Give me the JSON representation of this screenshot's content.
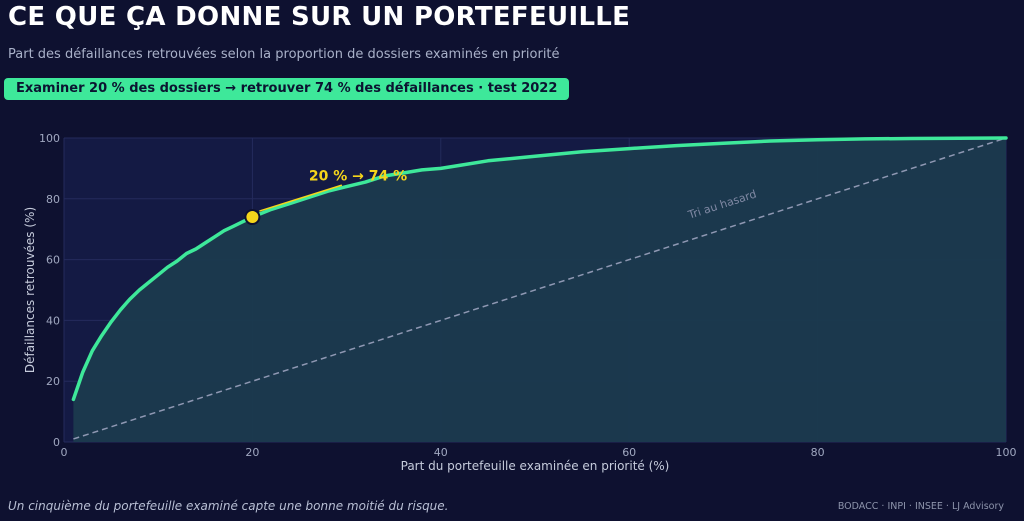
{
  "header": {
    "title": "CE QUE ÇA DONNE SUR UN PORTEFEUILLE",
    "subtitle": "Part des défaillances retrouvées selon la proportion de dossiers examinés en priorité",
    "highlight": "Examiner 20 % des dossiers → retrouver 74 % des défaillances  ·  test 2022"
  },
  "footer": {
    "caption": "Un cinquième du portefeuille examiné capte une bonne moitié du risque.",
    "sources": "BODACC · INPI · INSEE · LJ Advisory"
  },
  "colors": {
    "background": "#0e1130",
    "plot_area": "#141a44",
    "curve": "#3ee89a",
    "fill": "#1b3a4e",
    "annotation": "#f5d51b",
    "diagonal": "#8f98b3"
  },
  "chart_data": {
    "type": "line",
    "xlabel": "Part du portefeuille examinée en priorité (%)",
    "ylabel": "Défaillances retrouvées (%)",
    "xlim": [
      0,
      100
    ],
    "ylim": [
      0,
      100
    ],
    "x_ticks": [
      0,
      20,
      40,
      60,
      80,
      100
    ],
    "y_ticks": [
      0,
      20,
      40,
      60,
      80,
      100
    ],
    "grid": true,
    "series": [
      {
        "type": "area-line",
        "x": [
          1,
          2,
          3,
          4,
          5,
          6,
          7,
          8,
          9,
          10,
          11,
          12,
          13,
          14,
          15,
          16,
          17,
          18,
          19,
          20,
          22,
          24,
          26,
          28,
          30,
          32,
          34,
          36,
          38,
          40,
          42,
          45,
          50,
          55,
          60,
          65,
          70,
          75,
          80,
          85,
          90,
          95,
          100
        ],
        "y": [
          14,
          23,
          30,
          35,
          39.5,
          43.5,
          47,
          50,
          52.5,
          55,
          57.5,
          59.5,
          62,
          63.5,
          65.5,
          67.5,
          69.5,
          71,
          72.5,
          74,
          76.5,
          78.5,
          80.5,
          82.5,
          84,
          85.5,
          87.5,
          88.5,
          89.5,
          90,
          91,
          92.5,
          94,
          95.5,
          96.5,
          97.5,
          98.3,
          99,
          99.4,
          99.7,
          99.85,
          99.95,
          100
        ]
      },
      {
        "name": "Tri au hasard",
        "type": "dashed-line",
        "x": [
          1,
          100
        ],
        "y": [
          1,
          100
        ]
      }
    ],
    "annotations": [
      {
        "text": "20 %  →  74 %",
        "x": 20,
        "y": 74
      }
    ]
  }
}
